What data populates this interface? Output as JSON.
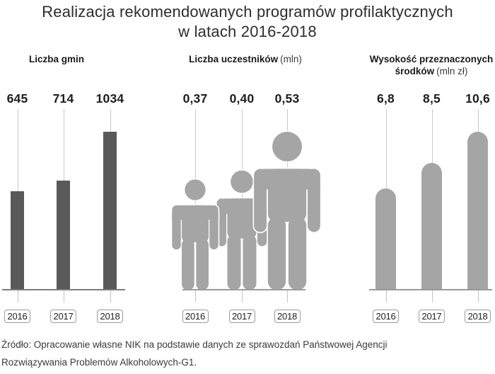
{
  "title": {
    "line1": "Realizacja rekomendowanych programów profilaktycznych",
    "line2": "w latach 2016-2018"
  },
  "years": [
    "2016",
    "2017",
    "2018"
  ],
  "chart_data": [
    {
      "type": "bar",
      "panel": "liczba-gmin",
      "title": "Liczba gmin",
      "unit": "",
      "categories": [
        "2016",
        "2017",
        "2018"
      ],
      "values": [
        645,
        714,
        1034
      ],
      "value_labels": [
        "645",
        "714",
        "1034"
      ],
      "bar_color": "#595959",
      "ylim": [
        0,
        1034
      ]
    },
    {
      "type": "pictogram",
      "panel": "liczba-uczestnikow",
      "title": "Liczba uczestników",
      "unit": "(mln)",
      "categories": [
        "2016",
        "2017",
        "2018"
      ],
      "values": [
        0.37,
        0.4,
        0.53
      ],
      "value_labels": [
        "0,37",
        "0,40",
        "0,53"
      ],
      "shape_color": "#a5a5a5",
      "ylim": [
        0,
        0.53
      ]
    },
    {
      "type": "bar",
      "bar_style": "rounded-top",
      "panel": "wysokosc-srodkow",
      "title": "Wysokość przeznaczonych",
      "title_line2": "środków",
      "unit": "(mln zł)",
      "categories": [
        "2016",
        "2017",
        "2018"
      ],
      "values": [
        6.8,
        8.5,
        10.6
      ],
      "value_labels": [
        "6,8",
        "8,5",
        "10,6"
      ],
      "bar_color": "#a5a5a5",
      "ylim": [
        0,
        10.6
      ]
    }
  ],
  "source": {
    "line1": "Źródło: Opracowanie własne NIK na podstawie danych ze sprawozdań Państwowej Agencji",
    "line2": "Rozwiązywania Problemów Alkoholowych-G1."
  },
  "colors": {
    "dark_bar": "#595959",
    "light_shape": "#a5a5a5",
    "connector": "#c8c8c8",
    "baseline_dark": "#7c7c7c",
    "baseline_light": "#9a9a9a",
    "tick": "#c4c4c4",
    "year_box_border": "#9c9c9c",
    "text": "#1f1f1f"
  }
}
